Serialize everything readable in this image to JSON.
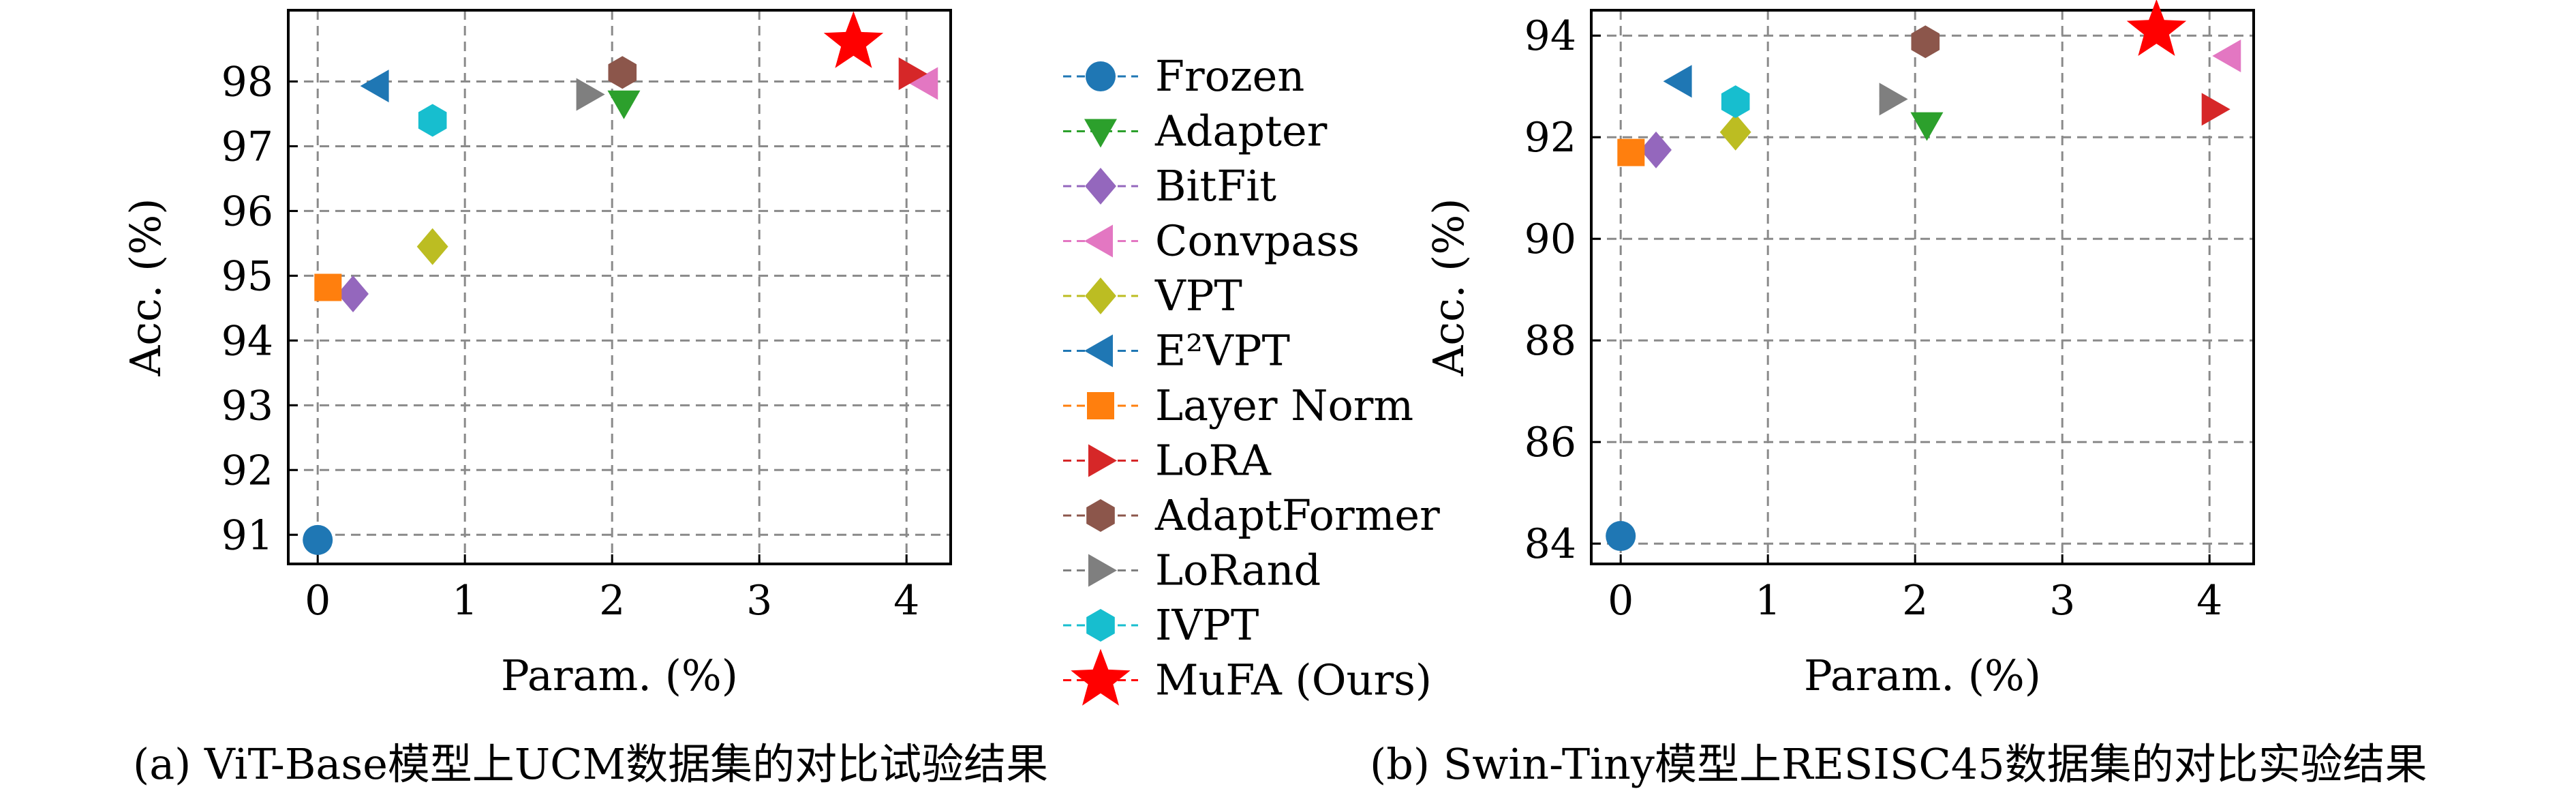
{
  "captions": {
    "a": "(a) ViT-Base模型上UCM数据集的对比试验结果",
    "b": "(b) Swin-Tiny模型上RESISC45数据集的对比实验结果"
  },
  "legend_items": [
    {
      "label": "Frozen",
      "color": "#1f77b4",
      "marker": "circle"
    },
    {
      "label": "Adapter",
      "color": "#2ca02c",
      "marker": "triangle-down"
    },
    {
      "label": "BitFit",
      "color": "#9467bd",
      "marker": "diamond"
    },
    {
      "label": "Convpass",
      "color": "#e377c2",
      "marker": "triangle-left"
    },
    {
      "label": "VPT",
      "color": "#bcbd22",
      "marker": "diamond"
    },
    {
      "label": "E²VPT",
      "color": "#1f77b4",
      "marker": "triangle-left"
    },
    {
      "label": "Layer Norm",
      "color": "#ff7f0e",
      "marker": "square"
    },
    {
      "label": "LoRA",
      "color": "#d62728",
      "marker": "triangle-right"
    },
    {
      "label": "AdaptFormer",
      "color": "#8c564b",
      "marker": "hexagon"
    },
    {
      "label": "LoRand",
      "color": "#7f7f7f",
      "marker": "triangle-right"
    },
    {
      "label": "IVPT",
      "color": "#17becf",
      "marker": "hexagon"
    },
    {
      "label": "MuFA (Ours)",
      "color": "#ff0000",
      "marker": "star"
    }
  ],
  "chart_data": [
    {
      "type": "scatter",
      "title": "",
      "xlabel": "Param. (%)",
      "ylabel": "Acc. (%)",
      "xlim": [
        -0.2,
        4.3
      ],
      "ylim": [
        90.55,
        99.1
      ],
      "xticks": [
        0,
        1,
        2,
        3,
        4
      ],
      "yticks": [
        91,
        92,
        93,
        94,
        95,
        96,
        97,
        98
      ],
      "grid": true,
      "series": [
        {
          "name": "Frozen",
          "x": [
            0.0
          ],
          "y": [
            90.92
          ]
        },
        {
          "name": "Adapter",
          "x": [
            2.08
          ],
          "y": [
            97.67
          ]
        },
        {
          "name": "BitFit",
          "x": [
            0.24
          ],
          "y": [
            94.72
          ]
        },
        {
          "name": "Convpass",
          "x": [
            4.13
          ],
          "y": [
            97.97
          ]
        },
        {
          "name": "VPT",
          "x": [
            0.78
          ],
          "y": [
            95.45
          ]
        },
        {
          "name": "E²VPT",
          "x": [
            0.4
          ],
          "y": [
            97.93
          ]
        },
        {
          "name": "Layer Norm",
          "x": [
            0.07
          ],
          "y": [
            94.82
          ]
        },
        {
          "name": "LoRA",
          "x": [
            4.03
          ],
          "y": [
            98.12
          ]
        },
        {
          "name": "AdaptFormer",
          "x": [
            2.07
          ],
          "y": [
            98.14
          ]
        },
        {
          "name": "LoRand",
          "x": [
            1.84
          ],
          "y": [
            97.8
          ]
        },
        {
          "name": "IVPT",
          "x": [
            0.78
          ],
          "y": [
            97.4
          ]
        },
        {
          "name": "MuFA (Ours)",
          "x": [
            3.64
          ],
          "y": [
            98.6
          ]
        }
      ]
    },
    {
      "type": "scatter",
      "title": "",
      "xlabel": "Param. (%)",
      "ylabel": "Acc. (%)",
      "xlim": [
        -0.2,
        4.3
      ],
      "ylim": [
        83.6,
        94.5
      ],
      "xticks": [
        0,
        1,
        2,
        3,
        4
      ],
      "yticks": [
        84,
        86,
        88,
        90,
        92,
        94
      ],
      "grid": true,
      "series": [
        {
          "name": "Frozen",
          "x": [
            0.0
          ],
          "y": [
            84.15
          ]
        },
        {
          "name": "Adapter",
          "x": [
            2.08
          ],
          "y": [
            92.25
          ]
        },
        {
          "name": "BitFit",
          "x": [
            0.24
          ],
          "y": [
            91.75
          ]
        },
        {
          "name": "Convpass",
          "x": [
            4.13
          ],
          "y": [
            93.6
          ]
        },
        {
          "name": "VPT",
          "x": [
            0.78
          ],
          "y": [
            92.1
          ]
        },
        {
          "name": "E²VPT",
          "x": [
            0.4
          ],
          "y": [
            93.1
          ]
        },
        {
          "name": "Layer Norm",
          "x": [
            0.07
          ],
          "y": [
            91.7
          ]
        },
        {
          "name": "LoRA",
          "x": [
            4.03
          ],
          "y": [
            92.55
          ]
        },
        {
          "name": "AdaptFormer",
          "x": [
            2.07
          ],
          "y": [
            93.88
          ]
        },
        {
          "name": "LoRand",
          "x": [
            1.84
          ],
          "y": [
            92.75
          ]
        },
        {
          "name": "IVPT",
          "x": [
            0.78
          ],
          "y": [
            92.7
          ]
        },
        {
          "name": "MuFA (Ours)",
          "x": [
            3.64
          ],
          "y": [
            94.1
          ]
        }
      ]
    }
  ]
}
